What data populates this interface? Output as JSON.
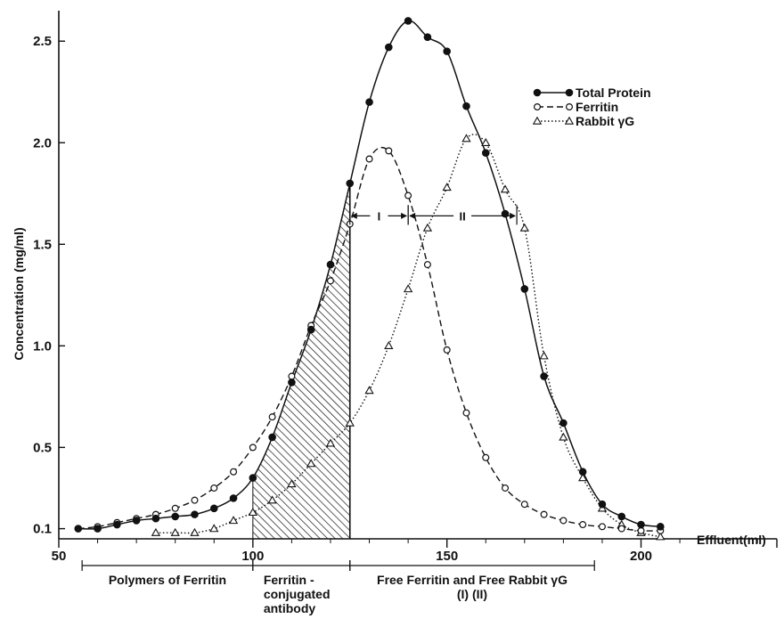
{
  "chart_data": {
    "type": "line",
    "xlabel": "Effluent(ml)",
    "ylabel": "Concentration (mg/ml)",
    "xlim": [
      50,
      235
    ],
    "ylim": [
      0.05,
      2.65
    ],
    "x_ticks": [
      {
        "value": 50,
        "label": "50"
      },
      {
        "value": 100,
        "label": "100"
      },
      {
        "value": 150,
        "label": "150"
      },
      {
        "value": 200,
        "label": "200"
      }
    ],
    "y_ticks": [
      {
        "value": 0.1,
        "label": "0.1"
      },
      {
        "value": 0.5,
        "label": "0.5"
      },
      {
        "value": 1.0,
        "label": "1.0"
      },
      {
        "value": 1.5,
        "label": "1.5"
      },
      {
        "value": 2.0,
        "label": "2.0"
      },
      {
        "value": 2.5,
        "label": "2.5"
      }
    ],
    "grid": false,
    "legend_position": "top-right",
    "series": [
      {
        "name": "Total Protein",
        "marker": "filled-circle",
        "line_style": "solid",
        "x": [
          55,
          60,
          65,
          70,
          75,
          80,
          85,
          90,
          95,
          100,
          105,
          110,
          115,
          120,
          125,
          130,
          135,
          140,
          145,
          150,
          155,
          160,
          165,
          170,
          175,
          180,
          185,
          190,
          195,
          200,
          205
        ],
        "y": [
          0.1,
          0.1,
          0.12,
          0.14,
          0.15,
          0.16,
          0.17,
          0.2,
          0.25,
          0.35,
          0.55,
          0.82,
          1.08,
          1.4,
          1.8,
          2.2,
          2.47,
          2.6,
          2.52,
          2.45,
          2.18,
          1.95,
          1.65,
          1.28,
          0.85,
          0.62,
          0.38,
          0.22,
          0.16,
          0.12,
          0.11
        ]
      },
      {
        "name": "Ferritin",
        "marker": "open-circle",
        "line_style": "dashed",
        "x": [
          55,
          60,
          65,
          70,
          75,
          80,
          85,
          90,
          95,
          100,
          105,
          110,
          115,
          120,
          125,
          130,
          135,
          140,
          145,
          150,
          155,
          160,
          165,
          170,
          175,
          180,
          185,
          190,
          195,
          200,
          205
        ],
        "y": [
          0.1,
          0.11,
          0.13,
          0.15,
          0.17,
          0.2,
          0.24,
          0.3,
          0.38,
          0.5,
          0.65,
          0.85,
          1.1,
          1.32,
          1.6,
          1.92,
          1.96,
          1.74,
          1.4,
          0.98,
          0.67,
          0.45,
          0.3,
          0.22,
          0.17,
          0.14,
          0.12,
          0.11,
          0.1,
          0.09,
          0.09
        ]
      },
      {
        "name": "Rabbit γG",
        "marker": "open-triangle",
        "line_style": "dotted",
        "x": [
          75,
          80,
          85,
          90,
          95,
          100,
          105,
          110,
          115,
          120,
          125,
          130,
          135,
          140,
          145,
          150,
          155,
          160,
          165,
          170,
          175,
          180,
          185,
          190,
          195,
          200,
          205
        ],
        "y": [
          0.08,
          0.08,
          0.08,
          0.1,
          0.14,
          0.18,
          0.24,
          0.32,
          0.42,
          0.52,
          0.62,
          0.78,
          1.0,
          1.28,
          1.58,
          1.78,
          2.02,
          2.0,
          1.77,
          1.58,
          0.95,
          0.55,
          0.35,
          0.2,
          0.12,
          0.08,
          0.06
        ]
      }
    ],
    "shaded_region": {
      "x_start": 100,
      "x_end": 125,
      "series": "Total Protein",
      "fill": "hatched"
    },
    "annotations": [
      {
        "text": "I",
        "x_start": 125,
        "x_end": 140,
        "y": 1.64
      },
      {
        "text": "II",
        "x_start": 140,
        "x_end": 168,
        "y": 1.64
      }
    ],
    "regions": [
      {
        "name": "polymers",
        "lines": [
          "Polymers of Ferritin"
        ],
        "x_start": 56,
        "x_end": 100
      },
      {
        "name": "conjugated",
        "lines": [
          "Ferritin -",
          "conjugated",
          "antibody"
        ],
        "x_start": 100,
        "x_end": 125
      },
      {
        "name": "free",
        "lines": [
          "Free Ferritin and Free Rabbit γG",
          "(I)                              (II)"
        ],
        "x_start": 125,
        "x_end": 188
      }
    ],
    "colors": {
      "ink": "#111111",
      "background": "#ffffff"
    }
  }
}
